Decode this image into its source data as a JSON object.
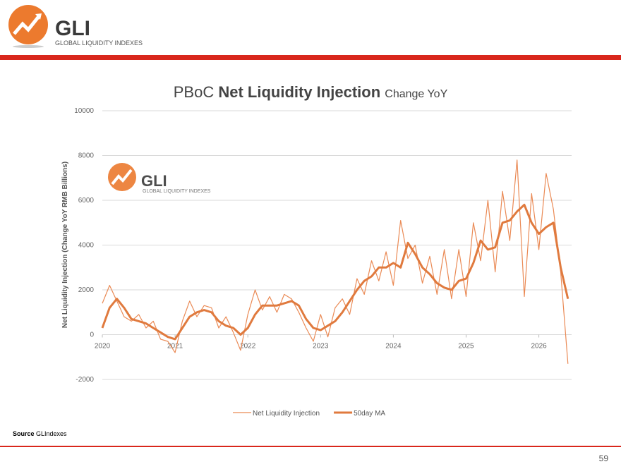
{
  "header": {
    "logo": "GLI",
    "tagline": "GLOBAL LIQUIDITY INDEXES"
  },
  "chart_data": {
    "type": "line",
    "title_parts": [
      "PBoC",
      "Net Liquidity Injection",
      "Change YoY"
    ],
    "y_label": "Net Liquidity Injection (Change YoY  RMB Billions)",
    "watermark": {
      "logo": "GLI",
      "tagline": "GLOBAL LIQUIDITY INDEXES"
    },
    "x": [
      2020.0,
      2020.1,
      2020.2,
      2020.3,
      2020.4,
      2020.5,
      2020.6,
      2020.7,
      2020.8,
      2020.9,
      2021.0,
      2021.1,
      2021.2,
      2021.3,
      2021.4,
      2021.5,
      2021.6,
      2021.7,
      2021.8,
      2021.9,
      2022.0,
      2022.1,
      2022.2,
      2022.3,
      2022.4,
      2022.5,
      2022.6,
      2022.7,
      2022.8,
      2022.9,
      2023.0,
      2023.1,
      2023.2,
      2023.3,
      2023.4,
      2023.5,
      2023.6,
      2023.7,
      2023.8,
      2023.9,
      2024.0,
      2024.1,
      2024.2,
      2024.3,
      2024.4,
      2024.5,
      2024.6,
      2024.7,
      2024.8,
      2024.9,
      2025.0,
      2025.1,
      2025.2,
      2025.3,
      2025.4,
      2025.5,
      2025.6,
      2025.7,
      2025.8,
      2025.9,
      2026.0,
      2026.1,
      2026.2,
      2026.3,
      2026.4
    ],
    "series": [
      {
        "name": "Net Liquidity Injection",
        "color": "#ea8a55",
        "width": 1.2,
        "values": [
          1400,
          2200,
          1500,
          800,
          600,
          900,
          300,
          600,
          -200,
          -300,
          -800,
          600,
          1500,
          800,
          1300,
          1200,
          300,
          800,
          100,
          -700,
          900,
          2000,
          1100,
          1700,
          1000,
          1800,
          1600,
          1000,
          300,
          -300,
          900,
          -100,
          1200,
          1600,
          900,
          2500,
          1800,
          3300,
          2400,
          3700,
          2200,
          5100,
          3400,
          4000,
          2300,
          3500,
          1800,
          3800,
          1600,
          3800,
          1700,
          5000,
          3300,
          6000,
          2800,
          6400,
          4200,
          7800,
          1700,
          6300,
          3800,
          7200,
          5600,
          2800,
          -1300
        ]
      },
      {
        "name": "50day MA",
        "color": "#e07a3e",
        "width": 3,
        "values": [
          300,
          1200,
          1600,
          1200,
          700,
          600,
          500,
          300,
          100,
          -100,
          -200,
          300,
          800,
          1000,
          1100,
          1000,
          600,
          400,
          300,
          0,
          300,
          900,
          1300,
          1300,
          1300,
          1400,
          1500,
          1300,
          700,
          300,
          200,
          400,
          600,
          1000,
          1500,
          2000,
          2400,
          2600,
          3000,
          3000,
          3200,
          3000,
          4100,
          3600,
          3000,
          2700,
          2300,
          2100,
          2000,
          2400,
          2500,
          3200,
          4200,
          3800,
          3900,
          5000,
          5100,
          5500,
          5800,
          5000,
          4500,
          4800,
          5000,
          3000,
          1600
        ]
      }
    ],
    "xlim": [
      2020,
      2026.45
    ],
    "xticks": [
      2020,
      2021,
      2022,
      2023,
      2024,
      2025,
      2026
    ],
    "ylim": [
      -2000,
      10000
    ],
    "yticks": [
      -2000,
      0,
      2000,
      4000,
      6000,
      8000,
      10000
    ],
    "grid": true
  },
  "footer": {
    "source_label": "Source",
    "source": "GLIndexes",
    "page": "59"
  }
}
